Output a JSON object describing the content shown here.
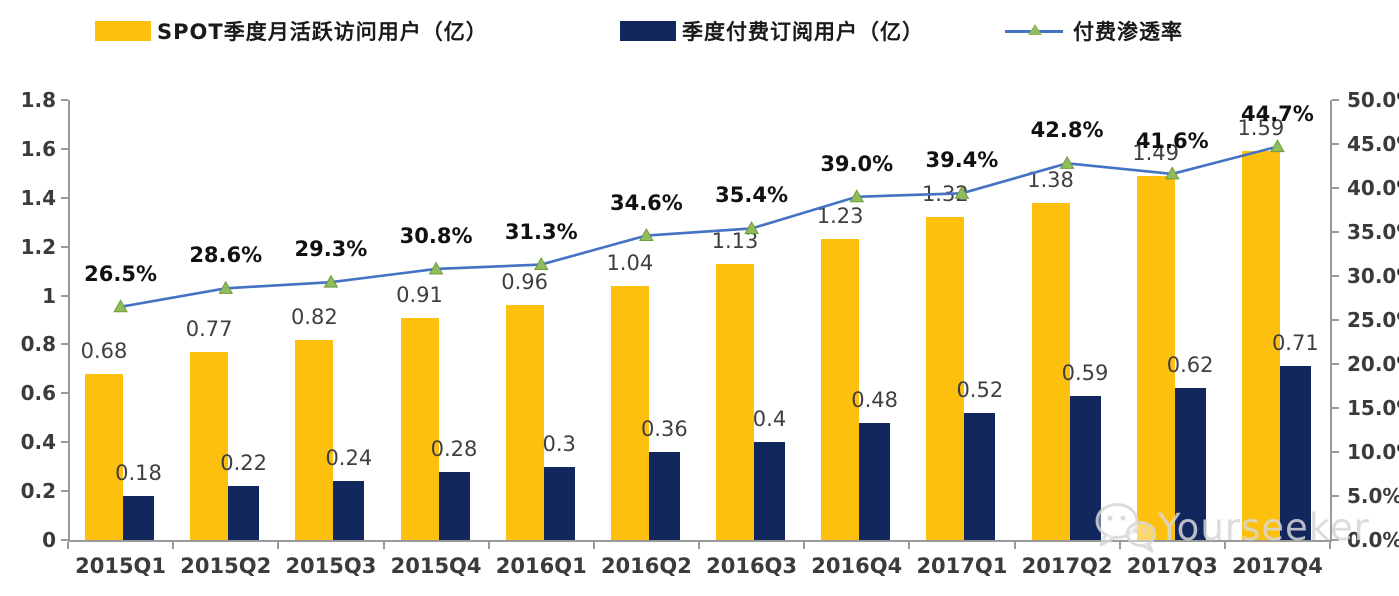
{
  "chart_data": {
    "type": "combo-bar-line",
    "categories": [
      "2015Q1",
      "2015Q2",
      "2015Q3",
      "2015Q4",
      "2016Q1",
      "2016Q2",
      "2016Q3",
      "2016Q4",
      "2017Q1",
      "2017Q2",
      "2017Q3",
      "2017Q4"
    ],
    "series": [
      {
        "name": "SPOT季度月活跃访问用户（亿）",
        "chart": "bar",
        "axis": "left",
        "color": "#FDC00F",
        "values": [
          0.68,
          0.77,
          0.82,
          0.91,
          0.96,
          1.04,
          1.13,
          1.23,
          1.32,
          1.38,
          1.49,
          1.59
        ],
        "labels": [
          "0.68",
          "0.77",
          "0.82",
          "0.91",
          "0.96",
          "1.04",
          "1.13",
          "1.23",
          "1.32",
          "1.38",
          "1.49",
          "1.59"
        ]
      },
      {
        "name": "季度付费订阅用户（亿）",
        "chart": "bar",
        "axis": "left",
        "color": "#12275E",
        "values": [
          0.18,
          0.22,
          0.24,
          0.28,
          0.3,
          0.36,
          0.4,
          0.48,
          0.52,
          0.59,
          0.62,
          0.71
        ],
        "labels": [
          "0.18",
          "0.22",
          "0.24",
          "0.28",
          "0.3",
          "0.36",
          "0.4",
          "0.48",
          "0.52",
          "0.59",
          "0.62",
          "0.71"
        ]
      },
      {
        "name": "付费渗透率",
        "chart": "line",
        "axis": "right",
        "color": "#4472C4",
        "marker": "triangle",
        "marker_fill": "#8FBC5C",
        "marker_stroke": "#6F9C3E",
        "values": [
          26.5,
          28.6,
          29.3,
          30.8,
          31.3,
          34.6,
          35.4,
          39.0,
          39.4,
          42.8,
          41.6,
          44.7
        ],
        "labels": [
          "26.5%",
          "28.6%",
          "29.3%",
          "30.8%",
          "31.3%",
          "34.6%",
          "35.4%",
          "39.0%",
          "39.4%",
          "42.8%",
          "41.6%",
          "44.7%"
        ]
      }
    ],
    "left_axis": {
      "min": 0,
      "max": 1.8,
      "ticks": [
        "0",
        "0.2",
        "0.4",
        "0.6",
        "0.8",
        "1",
        "1.2",
        "1.4",
        "1.6",
        "1.8"
      ]
    },
    "right_axis": {
      "min": 0,
      "max": 50,
      "ticks": [
        "0.0%",
        "5.0%",
        "10.0%",
        "15.0%",
        "20.0%",
        "25.0%",
        "30.0%",
        "35.0%",
        "40.0%",
        "45.0%",
        "50.0%"
      ]
    },
    "grid": false,
    "legend_position": "top"
  },
  "watermark": {
    "text": "Yourseeker",
    "icon": "wechat-icon"
  }
}
